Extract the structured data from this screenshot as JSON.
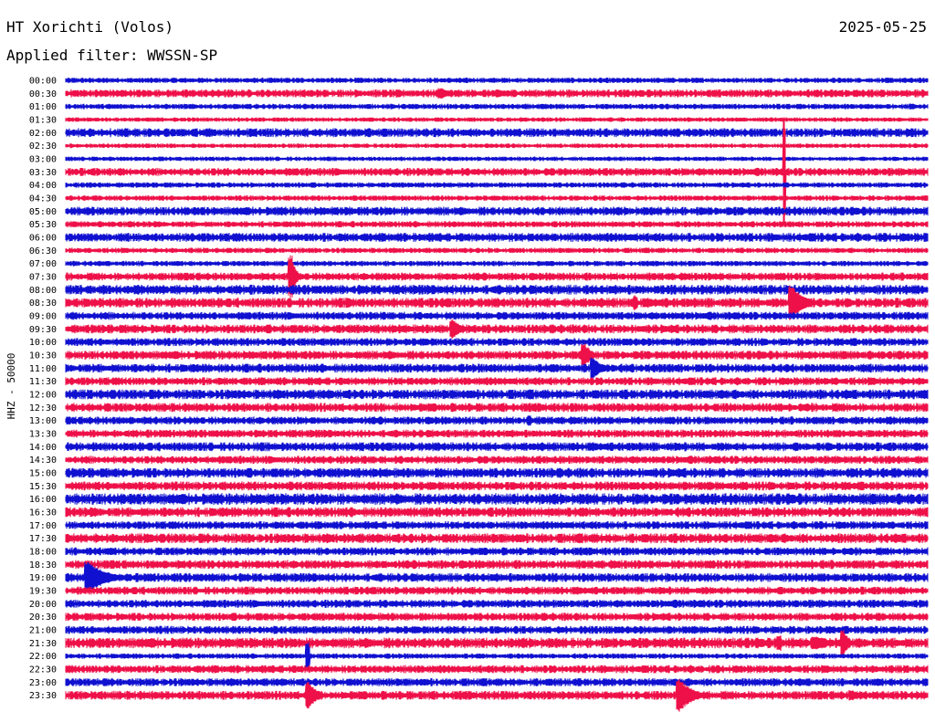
{
  "header": {
    "station": "HT Xorichti (Volos)",
    "date": "2025-05-25",
    "filter": "Applied filter: WWSSN-SP"
  },
  "chart_data": {
    "type": "line",
    "title": "HT Xorichti (Volos)",
    "subtitle": "Applied filter: WWSSN-SP",
    "date": "2025-05-25",
    "ylabel": "HHZ - 50000",
    "xlabel": "",
    "trace_minutes": 30,
    "grid": false,
    "colors": [
      "#1010d0",
      "#ee1048"
    ],
    "rows": [
      "00:00",
      "00:30",
      "01:00",
      "01:30",
      "02:00",
      "02:30",
      "03:00",
      "03:30",
      "04:00",
      "04:30",
      "05:00",
      "05:30",
      "06:00",
      "06:30",
      "07:00",
      "07:30",
      "08:00",
      "08:30",
      "09:00",
      "09:30",
      "10:00",
      "10:30",
      "11:00",
      "11:30",
      "12:00",
      "12:30",
      "13:00",
      "13:30",
      "14:00",
      "14:30",
      "15:00",
      "15:30",
      "16:00",
      "16:30",
      "17:00",
      "17:30",
      "18:00",
      "18:30",
      "19:00",
      "19:30",
      "20:00",
      "20:30",
      "21:00",
      "21:30",
      "22:00",
      "22:30",
      "23:00",
      "23:30"
    ],
    "noise_level": [
      0.6,
      0.9,
      0.6,
      0.5,
      1.0,
      0.5,
      0.5,
      0.9,
      0.6,
      0.6,
      1.0,
      0.7,
      1.0,
      0.6,
      0.6,
      0.9,
      1.1,
      1.1,
      0.9,
      1.0,
      0.9,
      1.0,
      1.0,
      0.9,
      1.1,
      1.0,
      0.9,
      0.9,
      1.0,
      0.9,
      1.1,
      1.0,
      1.3,
      1.1,
      0.9,
      1.1,
      0.9,
      1.0,
      1.0,
      0.9,
      0.9,
      0.9,
      0.9,
      1.2,
      0.6,
      0.9,
      0.9,
      1.0
    ],
    "events": [
      {
        "row": "00:30",
        "minute": 13.0,
        "amplitude": 1.0,
        "duration_min": 0.9
      },
      {
        "row": "01:00",
        "minute": 29.4,
        "amplitude": 0.6,
        "duration_min": 0.6
      },
      {
        "row": "02:00",
        "minute": 3.0,
        "amplitude": 0.5,
        "duration_min": 0.4
      },
      {
        "row": "03:30",
        "minute": 25.0,
        "amplitude": 10.0,
        "duration_min": 0.05
      },
      {
        "row": "06:00",
        "minute": 29.9,
        "amplitude": 0.8,
        "duration_min": 0.6
      },
      {
        "row": "07:30",
        "minute": 7.8,
        "amplitude": 4.0,
        "duration_min": 0.4
      },
      {
        "row": "08:00",
        "minute": 3.0,
        "amplitude": 0.6,
        "duration_min": 0.2
      },
      {
        "row": "08:00",
        "minute": 26.5,
        "amplitude": 0.5,
        "duration_min": 0.8
      },
      {
        "row": "08:30",
        "minute": 9.8,
        "amplitude": 1.0,
        "duration_min": 0.6
      },
      {
        "row": "08:30",
        "minute": 19.8,
        "amplitude": 1.4,
        "duration_min": 0.1
      },
      {
        "row": "08:30",
        "minute": 25.2,
        "amplitude": 3.5,
        "duration_min": 1.2
      },
      {
        "row": "09:30",
        "minute": 13.4,
        "amplitude": 1.8,
        "duration_min": 0.9
      },
      {
        "row": "10:30",
        "minute": 18.0,
        "amplitude": 2.2,
        "duration_min": 0.7
      },
      {
        "row": "11:00",
        "minute": 18.3,
        "amplitude": 2.0,
        "duration_min": 0.9
      },
      {
        "row": "12:00",
        "minute": 30.0,
        "amplitude": 0.6,
        "duration_min": 0.6
      },
      {
        "row": "13:00",
        "minute": 16.1,
        "amplitude": 1.0,
        "duration_min": 0.2
      },
      {
        "row": "17:30",
        "minute": 2.9,
        "amplitude": 0.8,
        "duration_min": 0.2
      },
      {
        "row": "18:00",
        "minute": 24.9,
        "amplitude": 0.5,
        "duration_min": 0.2
      },
      {
        "row": "18:30",
        "minute": 2.4,
        "amplitude": 0.4,
        "duration_min": 0.3
      },
      {
        "row": "19:00",
        "minute": 0.7,
        "amplitude": 3.0,
        "duration_min": 1.9
      },
      {
        "row": "21:00",
        "minute": 28.8,
        "amplitude": 0.6,
        "duration_min": 0.5
      },
      {
        "row": "21:30",
        "minute": 24.8,
        "amplitude": 1.6,
        "duration_min": 0.2
      },
      {
        "row": "21:30",
        "minute": 26.0,
        "amplitude": 1.3,
        "duration_min": 1.5
      },
      {
        "row": "21:30",
        "minute": 27.0,
        "amplitude": 2.5,
        "duration_min": 0.5
      },
      {
        "row": "22:00",
        "minute": 8.4,
        "amplitude": 2.5,
        "duration_min": 0.1
      },
      {
        "row": "23:30",
        "minute": 8.4,
        "amplitude": 2.5,
        "duration_min": 0.8
      },
      {
        "row": "23:30",
        "minute": 21.3,
        "amplitude": 3.0,
        "duration_min": 1.4
      },
      {
        "row": "23:30",
        "minute": 27.3,
        "amplitude": 1.0,
        "duration_min": 0.8
      }
    ]
  }
}
